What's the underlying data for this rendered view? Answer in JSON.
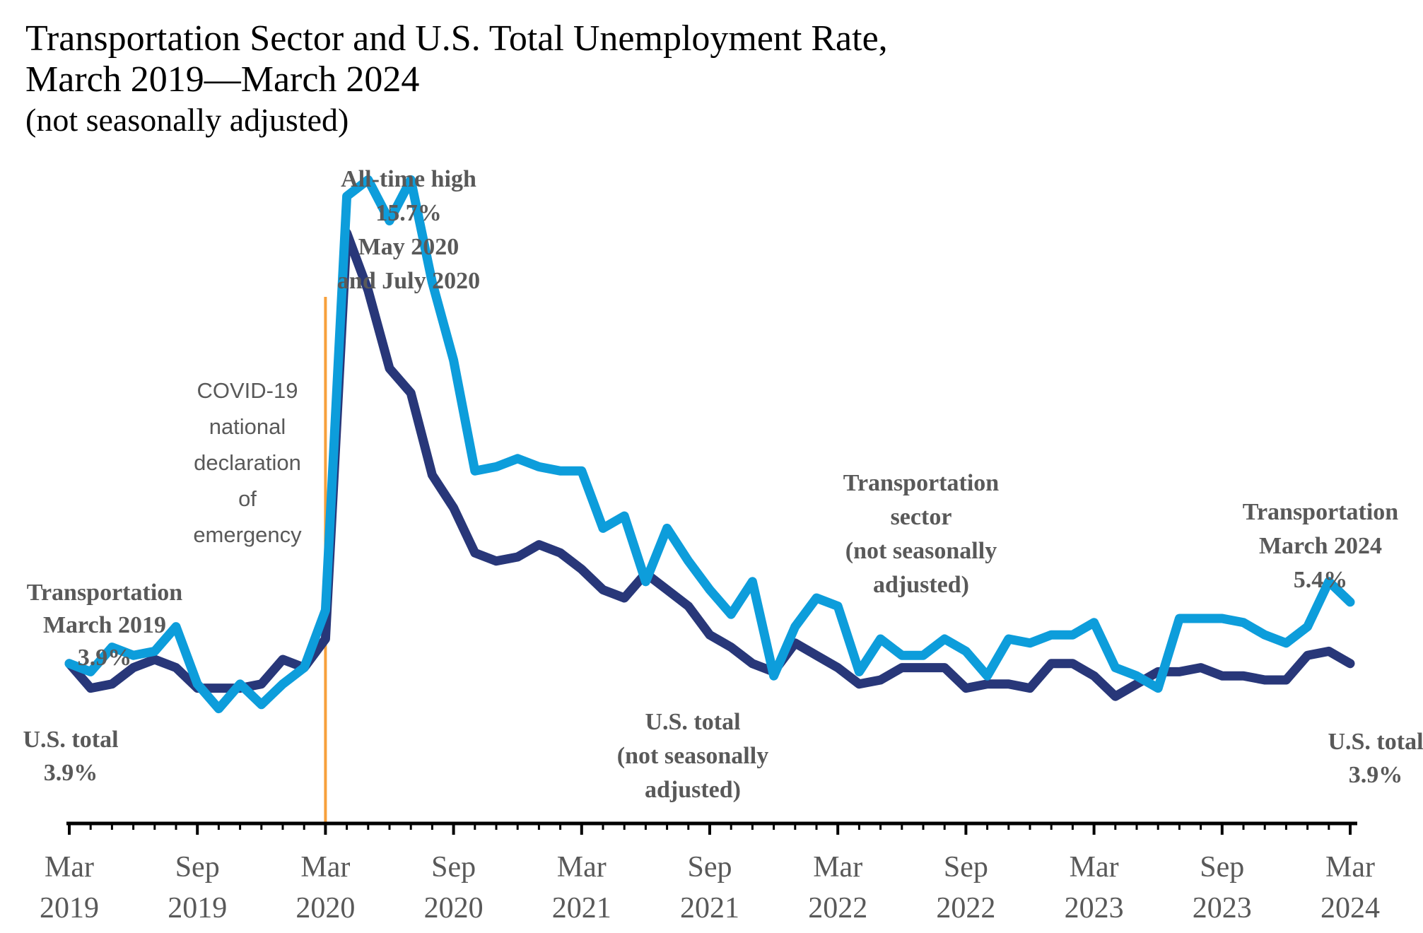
{
  "title": "Transportation Sector and U.S. Total Unemployment Rate,",
  "subtitle_dates": "March 2019—March 2024",
  "subtitle_note": "(not seasonally adjusted)",
  "chart_data": {
    "type": "line",
    "title": "Transportation Sector and U.S. Total Unemployment Rate, March 2019—March 2024 (not seasonally adjusted)",
    "xlabel": "",
    "ylabel": "",
    "ylim": [
      0,
      16.5
    ],
    "grid": false,
    "x": [
      "2019-03",
      "2019-04",
      "2019-05",
      "2019-06",
      "2019-07",
      "2019-08",
      "2019-09",
      "2019-10",
      "2019-11",
      "2019-12",
      "2020-01",
      "2020-02",
      "2020-03",
      "2020-04",
      "2020-05",
      "2020-06",
      "2020-07",
      "2020-08",
      "2020-09",
      "2020-10",
      "2020-11",
      "2020-12",
      "2021-01",
      "2021-02",
      "2021-03",
      "2021-04",
      "2021-05",
      "2021-06",
      "2021-07",
      "2021-08",
      "2021-09",
      "2021-10",
      "2021-11",
      "2021-12",
      "2022-01",
      "2022-02",
      "2022-03",
      "2022-04",
      "2022-05",
      "2022-06",
      "2022-07",
      "2022-08",
      "2022-09",
      "2022-10",
      "2022-11",
      "2022-12",
      "2023-01",
      "2023-02",
      "2023-03",
      "2023-04",
      "2023-05",
      "2023-06",
      "2023-07",
      "2023-08",
      "2023-09",
      "2023-10",
      "2023-11",
      "2023-12",
      "2024-01",
      "2024-02",
      "2024-03"
    ],
    "ticks": [
      {
        "index": 0,
        "month": "Mar",
        "year": "2019"
      },
      {
        "index": 6,
        "month": "Sep",
        "year": "2019"
      },
      {
        "index": 12,
        "month": "Mar",
        "year": "2020"
      },
      {
        "index": 18,
        "month": "Sep",
        "year": "2020"
      },
      {
        "index": 24,
        "month": "Mar",
        "year": "2021"
      },
      {
        "index": 30,
        "month": "Sep",
        "year": "2021"
      },
      {
        "index": 36,
        "month": "Mar",
        "year": "2022"
      },
      {
        "index": 42,
        "month": "Sep",
        "year": "2022"
      },
      {
        "index": 48,
        "month": "Mar",
        "year": "2023"
      },
      {
        "index": 54,
        "month": "Sep",
        "year": "2023"
      },
      {
        "index": 60,
        "month": "Mar",
        "year": "2024"
      }
    ],
    "series": [
      {
        "name": "U.S. total (not seasonally adjusted)",
        "color": "#283779",
        "values": [
          3.9,
          3.3,
          3.4,
          3.8,
          4.0,
          3.8,
          3.3,
          3.3,
          3.3,
          3.4,
          4.0,
          3.8,
          4.5,
          14.4,
          13.0,
          11.1,
          10.5,
          8.5,
          7.7,
          6.6,
          6.4,
          6.5,
          6.8,
          6.6,
          6.2,
          5.7,
          5.5,
          6.1,
          5.7,
          5.3,
          4.6,
          4.3,
          3.9,
          3.7,
          4.4,
          4.1,
          3.8,
          3.4,
          3.5,
          3.8,
          3.8,
          3.8,
          3.3,
          3.4,
          3.4,
          3.3,
          3.9,
          3.9,
          3.6,
          3.1,
          3.4,
          3.7,
          3.7,
          3.8,
          3.6,
          3.6,
          3.5,
          3.5,
          4.1,
          4.2,
          3.9
        ]
      },
      {
        "name": "Transportation sector (not seasonally adjusted)",
        "color": "#0d9ddb",
        "values": [
          3.9,
          3.7,
          4.3,
          4.1,
          4.2,
          4.8,
          3.4,
          2.8,
          3.4,
          2.9,
          3.4,
          3.8,
          5.2,
          15.3,
          15.7,
          14.7,
          15.7,
          13.2,
          11.3,
          8.6,
          8.7,
          8.9,
          8.7,
          8.6,
          8.6,
          7.2,
          7.5,
          5.9,
          7.2,
          6.4,
          5.7,
          5.1,
          5.9,
          3.6,
          4.8,
          5.5,
          5.3,
          3.7,
          4.5,
          4.1,
          4.1,
          4.5,
          4.2,
          3.6,
          4.5,
          4.4,
          4.6,
          4.6,
          4.9,
          3.8,
          3.6,
          3.3,
          5.0,
          5.0,
          5.0,
          4.9,
          4.6,
          4.4,
          4.8,
          5.9,
          5.4
        ]
      }
    ],
    "vertical_marker": {
      "index": 12,
      "color": "#f7a03b",
      "label": [
        "COVID-19",
        "national",
        "declaration",
        "of",
        "emergency"
      ]
    },
    "annotations": [
      {
        "lines": [
          "All-time high",
          "15.7%",
          "May 2020",
          "and July 2020"
        ],
        "position": "above peak"
      },
      {
        "lines": [
          "Transportation",
          "March 2019",
          "3.9%"
        ],
        "position": "left start"
      },
      {
        "lines": [
          "U.S. total",
          "3.9%"
        ],
        "position": "left start below"
      },
      {
        "lines": [
          "Transportation",
          "sector",
          "(not seasonally",
          "adjusted)"
        ],
        "position": "center-right above line"
      },
      {
        "lines": [
          "U.S. total",
          "(not seasonally",
          "adjusted)"
        ],
        "position": "center below line"
      },
      {
        "lines": [
          "Transportation",
          "March 2024",
          "5.4%"
        ],
        "position": "right end above"
      },
      {
        "lines": [
          "U.S. total",
          "3.9%"
        ],
        "position": "right end below"
      }
    ]
  }
}
